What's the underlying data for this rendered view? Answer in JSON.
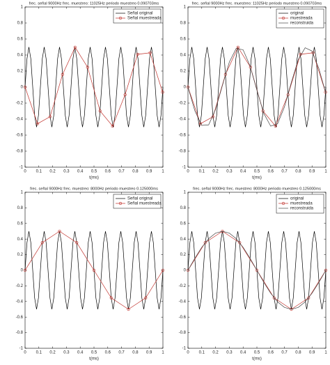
{
  "chart_data": [
    {
      "type": "line",
      "title": "frec. señal 9000Hz frec. muestreo: 11025Hz periodo muestreo 0.090703ms",
      "xlabel": "t(ms)",
      "xlim": [
        0,
        1
      ],
      "ylim": [
        -1,
        1
      ],
      "xticks": [
        0,
        0.1,
        0.2,
        0.3,
        0.4,
        0.5,
        0.6,
        0.7,
        0.8,
        0.9,
        1
      ],
      "yticks": [
        -1,
        -0.8,
        -0.6,
        -0.4,
        -0.2,
        0,
        0.2,
        0.4,
        0.6,
        0.8,
        1
      ],
      "grid": false,
      "legend": "upper right",
      "series": [
        {
          "name": "Señal original",
          "color": "#000000",
          "x": [
            0,
            0.0139,
            0.0278,
            0.0417,
            0.0556,
            0.0694,
            0.0833,
            0.0972,
            0.1111,
            0.125,
            0.1389,
            0.1528,
            0.1667,
            0.1806,
            0.1944,
            0.2083,
            0.2222,
            0.2361,
            0.25,
            0.2639,
            0.2778,
            0.2917,
            0.3056,
            0.3194,
            0.3333,
            0.3472,
            0.3611,
            0.375,
            0.3889,
            0.4028,
            0.4167,
            0.4306,
            0.4444,
            0.4583,
            0.4722,
            0.4861,
            0.5,
            0.5139,
            0.5278,
            0.5417,
            0.5556,
            0.5694,
            0.5833,
            0.5972,
            0.6111,
            0.625,
            0.6389,
            0.6528,
            0.6667,
            0.6806,
            0.6944,
            0.7083,
            0.7222,
            0.7361,
            0.75,
            0.7639,
            0.7778,
            0.7917,
            0.8056,
            0.8194,
            0.8333,
            0.8472,
            0.8611,
            0.875,
            0.8889,
            0.9028,
            0.9167,
            0.9306,
            0.9444,
            0.9583,
            0.9722,
            0.9861,
            1
          ],
          "values": [
            0,
            0.354,
            0.5,
            0.354,
            0,
            -0.354,
            -0.5,
            -0.354,
            0,
            0.354,
            0.5,
            0.354,
            0,
            -0.354,
            -0.5,
            -0.354,
            0,
            0.354,
            0.5,
            0.354,
            0,
            -0.354,
            -0.5,
            -0.354,
            0,
            0.354,
            0.5,
            0.354,
            0,
            -0.354,
            -0.5,
            -0.354,
            0,
            0.354,
            0.5,
            0.354,
            0,
            -0.354,
            -0.5,
            -0.354,
            0,
            0.354,
            0.5,
            0.354,
            0,
            -0.354,
            -0.5,
            -0.354,
            0,
            0.354,
            0.5,
            0.354,
            0,
            -0.354,
            -0.5,
            -0.354,
            0,
            0.354,
            0.5,
            0.354,
            0,
            -0.354,
            -0.5,
            -0.354,
            0,
            0.354,
            0.5,
            0.354,
            0,
            -0.354,
            -0.5,
            -0.354,
            0
          ]
        },
        {
          "name": "Señal muestreada",
          "color": "#c0302a",
          "marker": "o",
          "x": [
            0,
            0.0907,
            0.1814,
            0.2721,
            0.3628,
            0.4535,
            0.5442,
            0.6349,
            0.7256,
            0.8163,
            0.907,
            0.9977
          ],
          "values": [
            0,
            -0.457,
            -0.37,
            0.158,
            0.497,
            0.248,
            -0.299,
            -0.487,
            -0.096,
            0.409,
            0.428,
            -0.064
          ]
        }
      ]
    },
    {
      "type": "line",
      "title": "frec. señal 9000Hz frec. muestreo: 11025Hz periodo muestreo 0.090703ms",
      "xlabel": "t(ms)",
      "xlim": [
        0,
        1
      ],
      "ylim": [
        -1,
        1
      ],
      "xticks": [
        0,
        0.1,
        0.2,
        0.3,
        0.4,
        0.5,
        0.6,
        0.7,
        0.8,
        0.9,
        1
      ],
      "yticks": [
        -1,
        -0.8,
        -0.6,
        -0.4,
        -0.2,
        0,
        0.2,
        0.4,
        0.6,
        0.8,
        1
      ],
      "grid": false,
      "legend": "upper right",
      "series": [
        {
          "name": "original",
          "color": "#000000",
          "x": [
            0,
            0.0139,
            0.0278,
            0.0417,
            0.0556,
            0.0694,
            0.0833,
            0.0972,
            0.1111,
            0.125,
            0.1389,
            0.1528,
            0.1667,
            0.1806,
            0.1944,
            0.2083,
            0.2222,
            0.2361,
            0.25,
            0.2639,
            0.2778,
            0.2917,
            0.3056,
            0.3194,
            0.3333,
            0.3472,
            0.3611,
            0.375,
            0.3889,
            0.4028,
            0.4167,
            0.4306,
            0.4444,
            0.4583,
            0.4722,
            0.4861,
            0.5,
            0.5139,
            0.5278,
            0.5417,
            0.5556,
            0.5694,
            0.5833,
            0.5972,
            0.6111,
            0.625,
            0.6389,
            0.6528,
            0.6667,
            0.6806,
            0.6944,
            0.7083,
            0.7222,
            0.7361,
            0.75,
            0.7639,
            0.7778,
            0.7917,
            0.8056,
            0.8194,
            0.8333,
            0.8472,
            0.8611,
            0.875,
            0.8889,
            0.9028,
            0.9167,
            0.9306,
            0.9444,
            0.9583,
            0.9722,
            0.9861,
            1
          ],
          "values": [
            0,
            0.354,
            0.5,
            0.354,
            0,
            -0.354,
            -0.5,
            -0.354,
            0,
            0.354,
            0.5,
            0.354,
            0,
            -0.354,
            -0.5,
            -0.354,
            0,
            0.354,
            0.5,
            0.354,
            0,
            -0.354,
            -0.5,
            -0.354,
            0,
            0.354,
            0.5,
            0.354,
            0,
            -0.354,
            -0.5,
            -0.354,
            0,
            0.354,
            0.5,
            0.354,
            0,
            -0.354,
            -0.5,
            -0.354,
            0,
            0.354,
            0.5,
            0.354,
            0,
            -0.354,
            -0.5,
            -0.354,
            0,
            0.354,
            0.5,
            0.354,
            0,
            -0.354,
            -0.5,
            -0.354,
            0,
            0.354,
            0.5,
            0.354,
            0,
            -0.354,
            -0.5,
            -0.354,
            0,
            0.354,
            0.5,
            0.354,
            0,
            -0.354,
            -0.5,
            -0.354,
            0
          ]
        },
        {
          "name": "muestreada",
          "color": "#c0302a",
          "marker": "o",
          "x": [
            0,
            0.0907,
            0.1814,
            0.2721,
            0.3628,
            0.4535,
            0.5442,
            0.6349,
            0.7256,
            0.8163,
            0.907,
            0.9977
          ],
          "values": [
            0,
            -0.457,
            -0.37,
            0.158,
            0.497,
            0.248,
            -0.299,
            -0.487,
            -0.096,
            0.409,
            0.428,
            -0.064
          ]
        },
        {
          "name": "reconstruida",
          "color": "#444444",
          "x": [
            0,
            0.05,
            0.1,
            0.15,
            0.2,
            0.25,
            0.3,
            0.35,
            0.4,
            0.45,
            0.5,
            0.55,
            0.6,
            0.65,
            0.7,
            0.75,
            0.8,
            0.85,
            0.9,
            0.95,
            1
          ],
          "values": [
            0,
            -0.297,
            -0.478,
            -0.472,
            -0.28,
            0.02,
            0.312,
            0.483,
            0.465,
            0.265,
            -0.039,
            -0.328,
            -0.488,
            -0.458,
            -0.247,
            0.059,
            0.343,
            0.491,
            0.45,
            0.23,
            -0.078
          ]
        }
      ]
    },
    {
      "type": "line",
      "title": "frec. señal 9000Hz frec. muestreo: 8000Hz periodo muestreo 0.125000ms",
      "xlabel": "t(ms)",
      "xlim": [
        0,
        1
      ],
      "ylim": [
        -1,
        1
      ],
      "xticks": [
        0,
        0.1,
        0.2,
        0.3,
        0.4,
        0.5,
        0.6,
        0.7,
        0.8,
        0.9,
        1
      ],
      "yticks": [
        -1,
        -0.8,
        -0.6,
        -0.4,
        -0.2,
        0,
        0.2,
        0.4,
        0.6,
        0.8,
        1
      ],
      "grid": false,
      "legend": "upper right",
      "series": [
        {
          "name": "Señal original",
          "color": "#000000",
          "x": [
            0,
            0.0139,
            0.0278,
            0.0417,
            0.0556,
            0.0694,
            0.0833,
            0.0972,
            0.1111,
            0.125,
            0.1389,
            0.1528,
            0.1667,
            0.1806,
            0.1944,
            0.2083,
            0.2222,
            0.2361,
            0.25,
            0.2639,
            0.2778,
            0.2917,
            0.3056,
            0.3194,
            0.3333,
            0.3472,
            0.3611,
            0.375,
            0.3889,
            0.4028,
            0.4167,
            0.4306,
            0.4444,
            0.4583,
            0.4722,
            0.4861,
            0.5,
            0.5139,
            0.5278,
            0.5417,
            0.5556,
            0.5694,
            0.5833,
            0.5972,
            0.6111,
            0.625,
            0.6389,
            0.6528,
            0.6667,
            0.6806,
            0.6944,
            0.7083,
            0.7222,
            0.7361,
            0.75,
            0.7639,
            0.7778,
            0.7917,
            0.8056,
            0.8194,
            0.8333,
            0.8472,
            0.8611,
            0.875,
            0.8889,
            0.9028,
            0.9167,
            0.9306,
            0.9444,
            0.9583,
            0.9722,
            0.9861,
            1
          ],
          "values": [
            0,
            0.354,
            0.5,
            0.354,
            0,
            -0.354,
            -0.5,
            -0.354,
            0,
            0.354,
            0.5,
            0.354,
            0,
            -0.354,
            -0.5,
            -0.354,
            0,
            0.354,
            0.5,
            0.354,
            0,
            -0.354,
            -0.5,
            -0.354,
            0,
            0.354,
            0.5,
            0.354,
            0,
            -0.354,
            -0.5,
            -0.354,
            0,
            0.354,
            0.5,
            0.354,
            0,
            -0.354,
            -0.5,
            -0.354,
            0,
            0.354,
            0.5,
            0.354,
            0,
            -0.354,
            -0.5,
            -0.354,
            0,
            0.354,
            0.5,
            0.354,
            0,
            -0.354,
            -0.5,
            -0.354,
            0,
            0.354,
            0.5,
            0.354,
            0,
            -0.354,
            -0.5,
            -0.354,
            0,
            0.354,
            0.5,
            0.354,
            0,
            -0.354,
            -0.5,
            -0.354,
            0
          ]
        },
        {
          "name": "Señal muestreada",
          "color": "#c0302a",
          "marker": "o",
          "x": [
            0,
            0.125,
            0.25,
            0.375,
            0.5,
            0.625,
            0.75,
            0.875,
            1
          ],
          "values": [
            0,
            0.354,
            0.5,
            0.354,
            0,
            -0.354,
            -0.5,
            -0.354,
            0
          ]
        }
      ]
    },
    {
      "type": "line",
      "title": "frec. señal 9000Hz frec. muestreo: 8000Hz periodo muestreo 0.125000ms",
      "xlabel": "t(ms)",
      "xlim": [
        0,
        1
      ],
      "ylim": [
        -1,
        1
      ],
      "xticks": [
        0,
        0.1,
        0.2,
        0.3,
        0.4,
        0.5,
        0.6,
        0.7,
        0.8,
        0.9,
        1
      ],
      "yticks": [
        -1,
        -0.8,
        -0.6,
        -0.4,
        -0.2,
        0,
        0.2,
        0.4,
        0.6,
        0.8,
        1
      ],
      "grid": false,
      "legend": "upper right",
      "series": [
        {
          "name": "original",
          "color": "#000000",
          "x": [
            0,
            0.0139,
            0.0278,
            0.0417,
            0.0556,
            0.0694,
            0.0833,
            0.0972,
            0.1111,
            0.125,
            0.1389,
            0.1528,
            0.1667,
            0.1806,
            0.1944,
            0.2083,
            0.2222,
            0.2361,
            0.25,
            0.2639,
            0.2778,
            0.2917,
            0.3056,
            0.3194,
            0.3333,
            0.3472,
            0.3611,
            0.375,
            0.3889,
            0.4028,
            0.4167,
            0.4306,
            0.4444,
            0.4583,
            0.4722,
            0.4861,
            0.5,
            0.5139,
            0.5278,
            0.5417,
            0.5556,
            0.5694,
            0.5833,
            0.5972,
            0.6111,
            0.625,
            0.6389,
            0.6528,
            0.6667,
            0.6806,
            0.6944,
            0.7083,
            0.7222,
            0.7361,
            0.75,
            0.7639,
            0.7778,
            0.7917,
            0.8056,
            0.8194,
            0.8333,
            0.8472,
            0.8611,
            0.875,
            0.8889,
            0.9028,
            0.9167,
            0.9306,
            0.9444,
            0.9583,
            0.9722,
            0.9861,
            1
          ],
          "values": [
            0,
            0.354,
            0.5,
            0.354,
            0,
            -0.354,
            -0.5,
            -0.354,
            0,
            0.354,
            0.5,
            0.354,
            0,
            -0.354,
            -0.5,
            -0.354,
            0,
            0.354,
            0.5,
            0.354,
            0,
            -0.354,
            -0.5,
            -0.354,
            0,
            0.354,
            0.5,
            0.354,
            0,
            -0.354,
            -0.5,
            -0.354,
            0,
            0.354,
            0.5,
            0.354,
            0,
            -0.354,
            -0.5,
            -0.354,
            0,
            0.354,
            0.5,
            0.354,
            0,
            -0.354,
            -0.5,
            -0.354,
            0,
            0.354,
            0.5,
            0.354,
            0,
            -0.354,
            -0.5,
            -0.354,
            0,
            0.354,
            0.5,
            0.354,
            0,
            -0.354,
            -0.5,
            -0.354,
            0,
            0.354,
            0.5,
            0.354,
            0,
            -0.354,
            -0.5,
            -0.354,
            0
          ]
        },
        {
          "name": "muestreada",
          "color": "#c0302a",
          "marker": "o",
          "x": [
            0,
            0.125,
            0.25,
            0.375,
            0.5,
            0.625,
            0.75,
            0.875,
            1
          ],
          "values": [
            0,
            0.354,
            0.5,
            0.354,
            0,
            -0.354,
            -0.5,
            -0.354,
            0
          ]
        },
        {
          "name": "reconstruida",
          "color": "#444444",
          "x": [
            0,
            0.05,
            0.1,
            0.15,
            0.2,
            0.25,
            0.3,
            0.35,
            0.4,
            0.45,
            0.5,
            0.55,
            0.6,
            0.65,
            0.7,
            0.75,
            0.8,
            0.85,
            0.9,
            0.95,
            1
          ],
          "values": [
            0,
            0.155,
            0.294,
            0.405,
            0.476,
            0.5,
            0.476,
            0.405,
            0.294,
            0.155,
            0,
            -0.155,
            -0.294,
            -0.405,
            -0.476,
            -0.5,
            -0.476,
            -0.405,
            -0.294,
            -0.155,
            0
          ]
        }
      ]
    }
  ]
}
